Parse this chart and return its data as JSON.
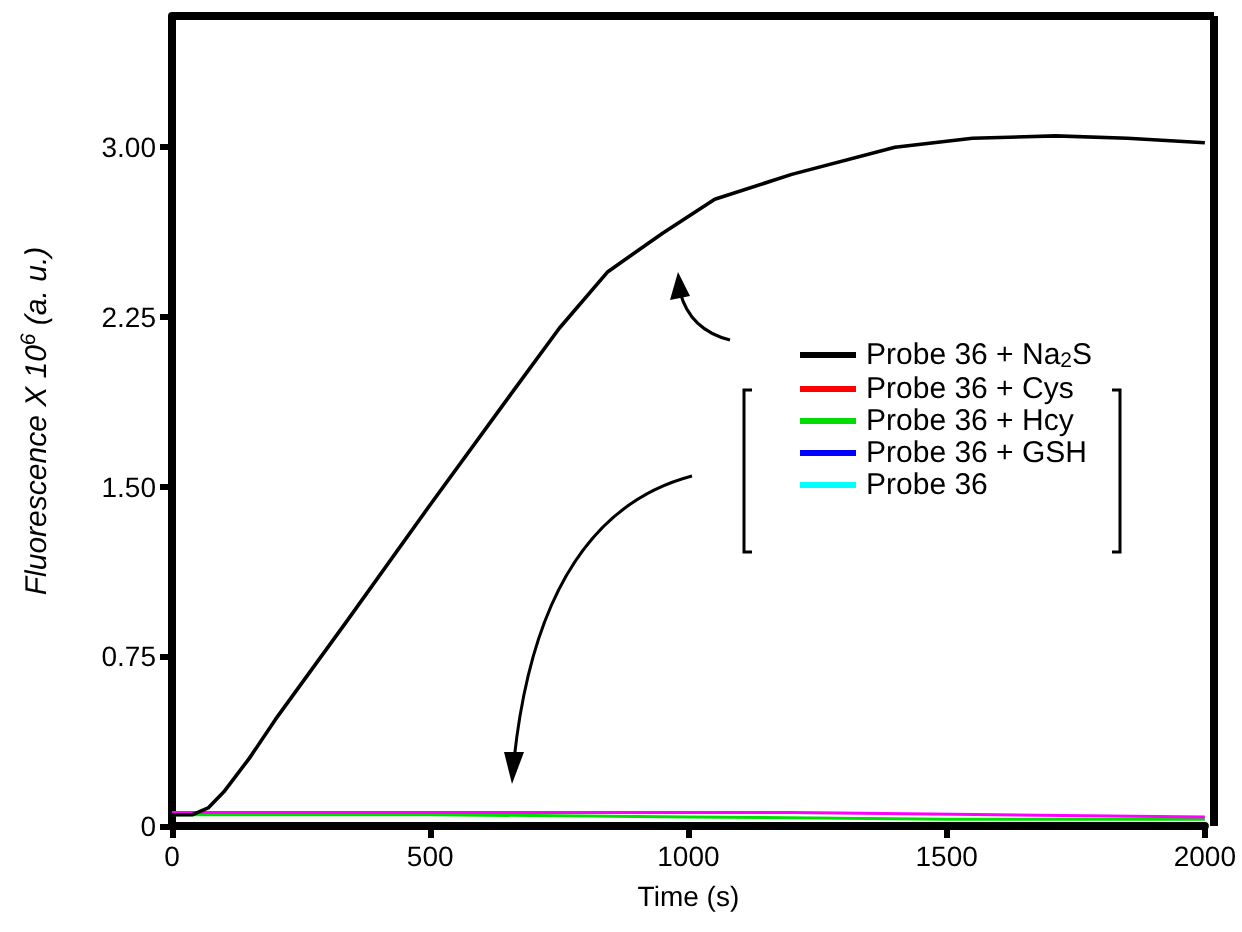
{
  "chart_data": {
    "type": "line",
    "xlabel": "Time (s)",
    "ylabel": "Fluorescence X 10$^{6}$ (a. u.)",
    "xlim": [
      0,
      2000
    ],
    "xticks": [
      0,
      500,
      1000,
      1500,
      2000
    ],
    "ylim": [
      0,
      3.58
    ],
    "yticks": [
      {
        "value": 0,
        "label": "0"
      },
      {
        "value": 0.75,
        "label": "0.75"
      },
      {
        "value": 1.5,
        "label": "1.50"
      },
      {
        "value": 2.25,
        "label": "2.25"
      },
      {
        "value": 3,
        "label": "3.00"
      }
    ],
    "grid": false,
    "legend": "right",
    "marker": "none",
    "line_style": "solid",
    "series": [
      {
        "name": "Probe 36 + Na$_{2}$S",
        "color": "#000000",
        "x": [
          0,
          40,
          70,
          100,
          150,
          200,
          340,
          500,
          663,
          750,
          844,
          950,
          1051,
          1200,
          1400,
          1550,
          1711,
          1850,
          2000
        ],
        "values": [
          0.05,
          0.05,
          0.08,
          0.15,
          0.3,
          0.47,
          0.91,
          1.42,
          1.93,
          2.2,
          2.45,
          2.62,
          2.77,
          2.88,
          3.0,
          3.04,
          3.05,
          3.04,
          3.02
        ]
      },
      {
        "name": "Probe 36 + Cys",
        "color": "#ff0000",
        "values": [
          null
        ]
      },
      {
        "name": "Probe 36 + Hcy",
        "color": "#00dd00",
        "x": [
          0,
          500,
          1000,
          1500,
          2000
        ],
        "values": [
          0.05,
          0.05,
          0.04,
          0.03,
          0.03
        ]
      },
      {
        "name": "Probe 36 + GSH",
        "color": "#0000ff",
        "values": [
          null
        ]
      },
      {
        "name": "Probe 36",
        "color": "#00ffff",
        "values": [
          null
        ]
      },
      {
        "color": "#ff00ff",
        "x": [
          0,
          400,
          800,
          1200,
          1600,
          2000
        ],
        "values": [
          0.06,
          0.06,
          0.06,
          0.06,
          0.05,
          0.04
        ]
      }
    ]
  }
}
